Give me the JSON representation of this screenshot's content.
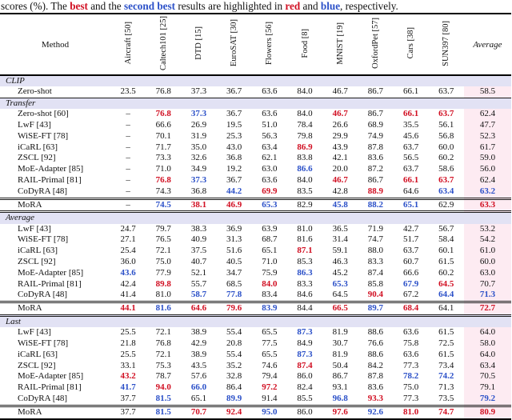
{
  "colors": {
    "best_red": "#d10f22",
    "second_blue": "#2b50c8",
    "section_band_bg": "#e2e2f4",
    "average_column_bg": "#fdebf2"
  },
  "caption": {
    "p1": "scores (%). The ",
    "best": "best",
    "p2": " and the ",
    "second_best": "second best",
    "p3": " results are highlighted in ",
    "red_word": "red",
    "p4": " and ",
    "blue_word": "blue",
    "p5": ", respectively."
  },
  "table": {
    "method_header": "Method",
    "average_header": "Average",
    "columns": [
      "Aircraft [50]",
      "Caltech101 [25]",
      "DTD [15]",
      "EuroSAT [30]",
      "Flowers [56]",
      "Food [8]",
      "MNIST [19]",
      "OxfordPet [57]",
      "Cars [38]",
      "SUN397 [80]"
    ],
    "sections": [
      {
        "label": "CLIP",
        "rows": [
          {
            "method": "Zero-shot",
            "values": [
              "23.5",
              "76.8",
              "37.3",
              "36.7",
              "63.6",
              "84.0",
              "46.7",
              "86.7",
              "66.1",
              "63.7",
              "58.5"
            ],
            "styles": [
              "n",
              "n",
              "n",
              "n",
              "n",
              "n",
              "n",
              "n",
              "n",
              "n",
              "n"
            ]
          }
        ],
        "mora_row": null
      },
      {
        "label": "Transfer",
        "rows": [
          {
            "method": "Zero-shot [60]",
            "values": [
              "–",
              "76.8",
              "37.3",
              "36.7",
              "63.6",
              "84.0",
              "46.7",
              "86.7",
              "66.1",
              "63.7",
              "62.4"
            ],
            "styles": [
              "n",
              "r",
              "b",
              "n",
              "n",
              "n",
              "r",
              "n",
              "r",
              "r",
              "n"
            ]
          },
          {
            "method": "LwF [43]",
            "values": [
              "–",
              "66.6",
              "26.9",
              "19.5",
              "51.0",
              "78.4",
              "26.6",
              "68.9",
              "35.5",
              "56.1",
              "47.7"
            ],
            "styles": [
              "n",
              "n",
              "n",
              "n",
              "n",
              "n",
              "n",
              "n",
              "n",
              "n",
              "n"
            ]
          },
          {
            "method": "WiSE-FT [78]",
            "values": [
              "–",
              "70.1",
              "31.9",
              "25.3",
              "56.3",
              "79.8",
              "29.9",
              "74.9",
              "45.6",
              "56.8",
              "52.3"
            ],
            "styles": [
              "n",
              "n",
              "n",
              "n",
              "n",
              "n",
              "n",
              "n",
              "n",
              "n",
              "n"
            ]
          },
          {
            "method": "iCaRL [63]",
            "values": [
              "–",
              "71.7",
              "35.0",
              "43.0",
              "63.4",
              "86.9",
              "43.9",
              "87.8",
              "63.7",
              "60.0",
              "61.7"
            ],
            "styles": [
              "n",
              "n",
              "n",
              "n",
              "n",
              "r",
              "n",
              "n",
              "n",
              "n",
              "n"
            ]
          },
          {
            "method": "ZSCL [92]",
            "values": [
              "–",
              "73.3",
              "32.6",
              "36.8",
              "62.1",
              "83.8",
              "42.1",
              "83.6",
              "56.5",
              "60.2",
              "59.0"
            ],
            "styles": [
              "n",
              "n",
              "n",
              "n",
              "n",
              "n",
              "n",
              "n",
              "n",
              "n",
              "n"
            ]
          },
          {
            "method": "MoE-Adapter [85]",
            "values": [
              "–",
              "71.0",
              "34.9",
              "19.2",
              "63.0",
              "86.6",
              "20.0",
              "87.2",
              "63.7",
              "58.6",
              "56.0"
            ],
            "styles": [
              "n",
              "n",
              "n",
              "n",
              "n",
              "b",
              "n",
              "n",
              "n",
              "n",
              "n"
            ]
          },
          {
            "method": "RAIL-Primal [81]",
            "values": [
              "–",
              "76.8",
              "37.3",
              "36.7",
              "63.6",
              "84.0",
              "46.7",
              "86.7",
              "66.1",
              "63.7",
              "62.4"
            ],
            "styles": [
              "n",
              "r",
              "b",
              "n",
              "n",
              "n",
              "r",
              "n",
              "r",
              "r",
              "n"
            ]
          },
          {
            "method": "CoDyRA [48]",
            "values": [
              "–",
              "74.3",
              "36.8",
              "44.2",
              "69.9",
              "83.5",
              "42.8",
              "88.9",
              "64.6",
              "63.4",
              "63.2"
            ],
            "styles": [
              "n",
              "n",
              "n",
              "b",
              "r",
              "n",
              "n",
              "r",
              "n",
              "b",
              "b"
            ]
          }
        ],
        "mora_row": {
          "method": "MoRA",
          "values": [
            "–",
            "74.5",
            "38.1",
            "46.9",
            "65.3",
            "82.9",
            "45.8",
            "88.2",
            "65.1",
            "62.9",
            "63.3"
          ],
          "styles": [
            "n",
            "b",
            "r",
            "r",
            "b",
            "n",
            "b",
            "b",
            "b",
            "n",
            "r"
          ]
        }
      },
      {
        "label": "Average",
        "rows": [
          {
            "method": "LwF [43]",
            "values": [
              "24.7",
              "79.7",
              "38.3",
              "36.9",
              "63.9",
              "81.0",
              "36.5",
              "71.9",
              "42.7",
              "56.7",
              "53.2"
            ],
            "styles": [
              "n",
              "n",
              "n",
              "n",
              "n",
              "n",
              "n",
              "n",
              "n",
              "n",
              "n"
            ]
          },
          {
            "method": "WiSE-FT [78]",
            "values": [
              "27.1",
              "76.5",
              "40.9",
              "31.3",
              "68.7",
              "81.6",
              "31.4",
              "74.7",
              "51.7",
              "58.4",
              "54.2"
            ],
            "styles": [
              "n",
              "n",
              "n",
              "n",
              "n",
              "n",
              "n",
              "n",
              "n",
              "n",
              "n"
            ]
          },
          {
            "method": "iCaRL [63]",
            "values": [
              "25.4",
              "72.1",
              "37.5",
              "51.6",
              "65.1",
              "87.1",
              "59.1",
              "88.0",
              "63.7",
              "60.1",
              "61.0"
            ],
            "styles": [
              "n",
              "n",
              "n",
              "n",
              "n",
              "r",
              "n",
              "n",
              "n",
              "n",
              "n"
            ]
          },
          {
            "method": "ZSCL [92]",
            "values": [
              "36.0",
              "75.0",
              "40.7",
              "40.5",
              "71.0",
              "85.3",
              "46.3",
              "83.3",
              "60.7",
              "61.5",
              "60.0"
            ],
            "styles": [
              "n",
              "n",
              "n",
              "n",
              "n",
              "n",
              "n",
              "n",
              "n",
              "n",
              "n"
            ]
          },
          {
            "method": "MoE-Adapter [85]",
            "values": [
              "43.6",
              "77.9",
              "52.1",
              "34.7",
              "75.9",
              "86.3",
              "45.2",
              "87.4",
              "66.6",
              "60.2",
              "63.0"
            ],
            "styles": [
              "b",
              "n",
              "n",
              "n",
              "n",
              "b",
              "n",
              "n",
              "n",
              "n",
              "n"
            ]
          },
          {
            "method": "RAIL-Primal [81]",
            "values": [
              "42.4",
              "89.8",
              "55.7",
              "68.5",
              "84.0",
              "83.3",
              "65.3",
              "85.8",
              "67.9",
              "64.5",
              "70.7"
            ],
            "styles": [
              "n",
              "r",
              "n",
              "n",
              "r",
              "n",
              "b",
              "n",
              "b",
              "r",
              "n"
            ]
          },
          {
            "method": "CoDyRA [48]",
            "values": [
              "41.4",
              "81.0",
              "58.7",
              "77.8",
              "83.4",
              "84.6",
              "64.5",
              "90.4",
              "67.2",
              "64.4",
              "71.3"
            ],
            "styles": [
              "n",
              "n",
              "b",
              "b",
              "n",
              "n",
              "n",
              "r",
              "n",
              "b",
              "b"
            ]
          }
        ],
        "mora_row": {
          "method": "MoRA",
          "values": [
            "44.1",
            "81.6",
            "64.6",
            "79.6",
            "83.9",
            "84.4",
            "66.5",
            "89.7",
            "68.4",
            "64.1",
            "72.7"
          ],
          "styles": [
            "r",
            "b",
            "r",
            "r",
            "b",
            "n",
            "r",
            "b",
            "r",
            "n",
            "r"
          ]
        }
      },
      {
        "label": "Last",
        "rows": [
          {
            "method": "LwF [43]",
            "values": [
              "25.5",
              "72.1",
              "38.9",
              "55.4",
              "65.5",
              "87.3",
              "81.9",
              "88.6",
              "63.6",
              "61.5",
              "64.0"
            ],
            "styles": [
              "n",
              "n",
              "n",
              "n",
              "n",
              "b",
              "n",
              "n",
              "n",
              "n",
              "n"
            ]
          },
          {
            "method": "WiSE-FT [78]",
            "values": [
              "21.8",
              "76.8",
              "42.9",
              "20.8",
              "77.5",
              "84.9",
              "30.7",
              "76.6",
              "75.8",
              "72.5",
              "58.0"
            ],
            "styles": [
              "n",
              "n",
              "n",
              "n",
              "n",
              "n",
              "n",
              "n",
              "n",
              "n",
              "n"
            ]
          },
          {
            "method": "iCaRL [63]",
            "values": [
              "25.5",
              "72.1",
              "38.9",
              "55.4",
              "65.5",
              "87.3",
              "81.9",
              "88.6",
              "63.6",
              "61.5",
              "64.0"
            ],
            "styles": [
              "n",
              "n",
              "n",
              "n",
              "n",
              "b",
              "n",
              "n",
              "n",
              "n",
              "n"
            ]
          },
          {
            "method": "ZSCL [92]",
            "values": [
              "33.1",
              "75.3",
              "43.5",
              "35.2",
              "74.6",
              "87.4",
              "50.4",
              "84.2",
              "77.3",
              "73.4",
              "63.4"
            ],
            "styles": [
              "n",
              "n",
              "n",
              "n",
              "n",
              "r",
              "n",
              "n",
              "n",
              "n",
              "n"
            ]
          },
          {
            "method": "MoE-Adapter [85]",
            "values": [
              "43.2",
              "78.7",
              "57.6",
              "32.8",
              "79.4",
              "86.0",
              "86.7",
              "87.8",
              "78.2",
              "74.2",
              "70.5"
            ],
            "styles": [
              "r",
              "n",
              "n",
              "n",
              "n",
              "n",
              "n",
              "n",
              "b",
              "b",
              "n"
            ]
          },
          {
            "method": "RAIL-Primal [81]",
            "values": [
              "41.7",
              "94.0",
              "66.0",
              "86.4",
              "97.2",
              "82.4",
              "93.1",
              "83.6",
              "75.0",
              "71.3",
              "79.1"
            ],
            "styles": [
              "b",
              "r",
              "b",
              "n",
              "r",
              "n",
              "n",
              "n",
              "n",
              "n",
              "n"
            ]
          },
          {
            "method": "CoDyRA [48]",
            "values": [
              "37.7",
              "81.5",
              "65.1",
              "89.9",
              "91.4",
              "85.5",
              "96.8",
              "93.3",
              "77.3",
              "73.5",
              "79.2"
            ],
            "styles": [
              "n",
              "b",
              "n",
              "b",
              "n",
              "n",
              "b",
              "r",
              "n",
              "n",
              "b"
            ]
          }
        ],
        "mora_row": {
          "method": "MoRA",
          "values": [
            "37.7",
            "81.5",
            "70.7",
            "92.4",
            "95.0",
            "86.0",
            "97.6",
            "92.6",
            "81.0",
            "74.7",
            "80.9"
          ],
          "styles": [
            "n",
            "b",
            "r",
            "r",
            "b",
            "n",
            "r",
            "b",
            "r",
            "r",
            "r"
          ]
        }
      }
    ]
  }
}
